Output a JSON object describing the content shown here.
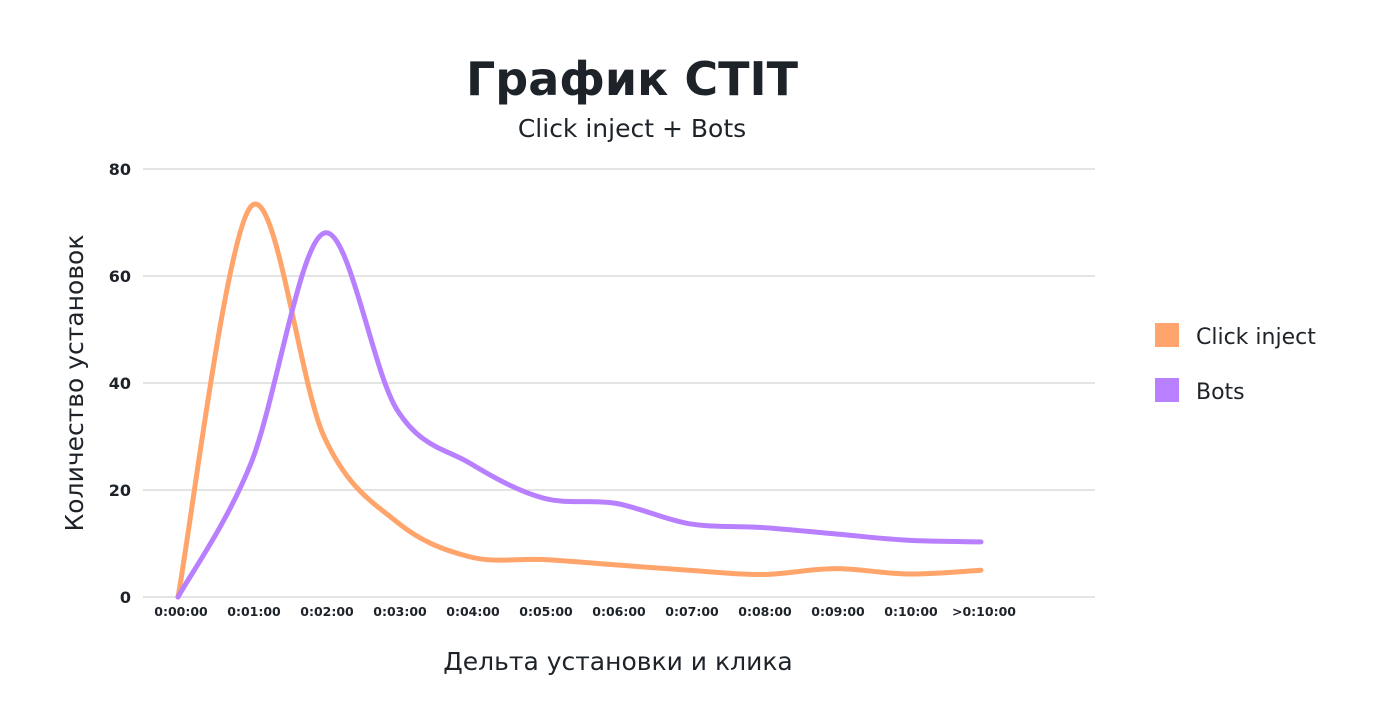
{
  "chart_data": {
    "type": "line",
    "title": "График CTIT",
    "subtitle": "Click inject + Bots",
    "xlabel": "Дельта установки и клика",
    "ylabel": "Количество установок",
    "ylim": [
      0,
      80
    ],
    "yticks": [
      "0",
      "20",
      "40",
      "60",
      "80"
    ],
    "grid": true,
    "legend_position": "right",
    "categories": [
      "0:00:00",
      "0:01:00",
      "0:02:00",
      "0:03:00",
      "0:04:00",
      "0:05:00",
      "0:06:00",
      "0:07:00",
      "0:08:00",
      "0:09:00",
      "0:10:00",
      ">0:10:00"
    ],
    "series": [
      {
        "name": "Click inject",
        "color": "#ffa56b",
        "values": [
          0,
          73,
          30,
          14,
          7.5,
          7,
          6,
          5,
          4.2,
          5.3,
          4.3,
          5
        ]
      },
      {
        "name": "Bots",
        "color": "#b880ff",
        "values": [
          0,
          25,
          68,
          35,
          25,
          18.5,
          17.5,
          13.7,
          13,
          11.8,
          10.6,
          10.3
        ]
      }
    ]
  }
}
